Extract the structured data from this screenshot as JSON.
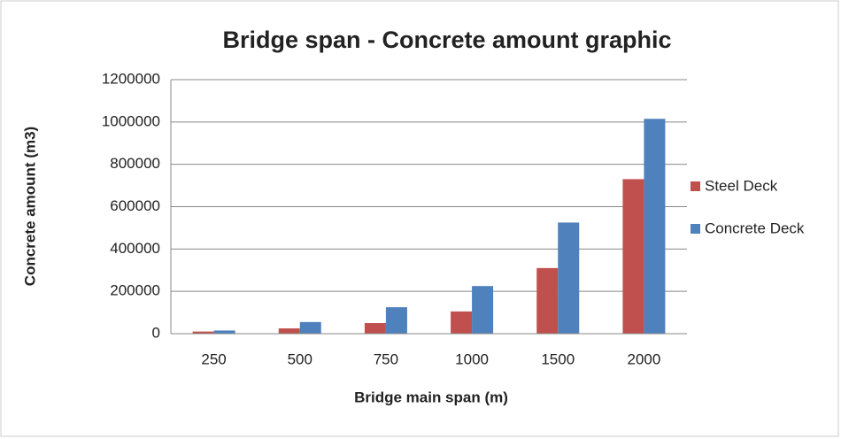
{
  "chart_data": {
    "type": "bar",
    "title": "Bridge span - Concrete amount graphic",
    "x_label": "Bridge main span (m)",
    "y_label": "Concrete amount (m3)",
    "categories": [
      "250",
      "500",
      "750",
      "1000",
      "1500",
      "2000"
    ],
    "series": [
      {
        "name": "Steel Deck",
        "color": "#c0504d",
        "values": [
          10000,
          25000,
          50000,
          105000,
          310000,
          730000
        ]
      },
      {
        "name": "Concrete Deck",
        "color": "#4f81bd",
        "values": [
          15000,
          55000,
          125000,
          225000,
          525000,
          1015000
        ]
      }
    ],
    "ylim": [
      0,
      1200000
    ],
    "yticks": [
      0,
      200000,
      400000,
      600000,
      800000,
      1000000,
      1200000
    ],
    "grid": true,
    "legend": "right"
  }
}
